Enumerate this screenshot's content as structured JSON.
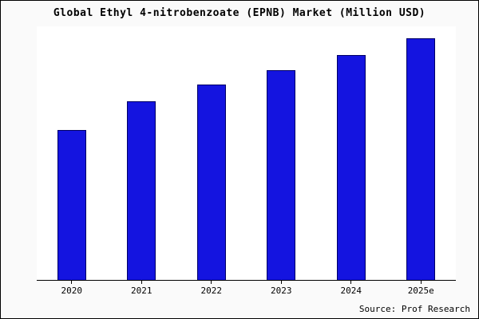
{
  "page": {
    "title": "Global Ethyl 4-nitrobenzoate (EPNB) Market (Million USD)",
    "source": "Source: Prof Research"
  },
  "colors": {
    "bar_fill": "#1414e0",
    "bar_border": "#000066",
    "axis": "#000000",
    "plot_background": "#ffffff",
    "page_background": "#fafafa"
  },
  "chart_data": {
    "type": "bar",
    "title": "Global Ethyl 4-nitrobenzoate (EPNB) Market (Million USD)",
    "categories": [
      "2020",
      "2021",
      "2022",
      "2023",
      "2024",
      "2025e"
    ],
    "values": [
      62,
      74,
      81,
      87,
      93,
      100
    ],
    "xlabel": "",
    "ylabel": "",
    "ylim": [
      0,
      105
    ],
    "grid": false,
    "legend": false,
    "note": "y-axis has no tick labels; values are relative estimates of bar heights"
  }
}
